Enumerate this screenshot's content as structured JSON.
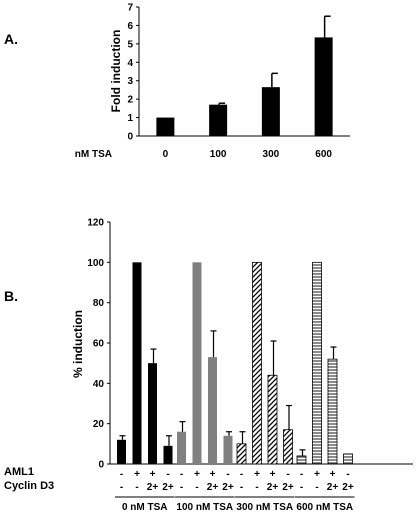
{
  "chart_data": [
    {
      "panel": "A.",
      "type": "bar",
      "ylabel": "Fold induction",
      "xlabel_row": "nM TSA",
      "categories": [
        "0",
        "100",
        "300",
        "600"
      ],
      "values": [
        1.0,
        1.7,
        2.65,
        5.35
      ],
      "errors": [
        0.0,
        0.08,
        0.75,
        1.15
      ],
      "ylim": [
        0,
        7
      ],
      "yticks": [
        "0",
        "1",
        "2",
        "3",
        "4",
        "5",
        "6",
        "7"
      ],
      "color": "#000000",
      "grid": false
    },
    {
      "panel": "B.",
      "type": "bar",
      "ylabel": "% induction",
      "ylim": [
        0,
        120
      ],
      "yticks": [
        "0",
        "20",
        "40",
        "60",
        "80",
        "100",
        "120"
      ],
      "row_labels": [
        "AML1",
        "Cyclin D3"
      ],
      "grid": false,
      "groups": [
        {
          "label": "0 nM TSA",
          "pattern": "solid-black",
          "values": [
            12,
            100,
            50,
            9
          ],
          "errors": [
            2,
            0,
            7,
            5
          ],
          "aml1": [
            "-",
            "+",
            "+",
            "-"
          ],
          "cyclin": [
            "-",
            "-",
            "2+",
            "2+"
          ]
        },
        {
          "label": "100 nM TSA",
          "pattern": "solid-gray",
          "values": [
            16,
            100,
            53,
            14
          ],
          "errors": [
            5,
            0,
            13,
            2
          ],
          "aml1": [
            "-",
            "+",
            "+",
            "-"
          ],
          "cyclin": [
            "-",
            "-",
            "2+",
            "2+"
          ]
        },
        {
          "label": "300 nM TSA",
          "pattern": "diagonal-hatch",
          "values": [
            10,
            100,
            44,
            17
          ],
          "errors": [
            6,
            0,
            17,
            12
          ],
          "aml1": [
            "-",
            "+",
            "+",
            "-"
          ],
          "cyclin": [
            "-",
            "-",
            "2+",
            "2+"
          ]
        },
        {
          "label": "600 nM TSA",
          "pattern": "horizontal-stripe",
          "values": [
            4,
            100,
            52,
            5
          ],
          "errors": [
            3,
            0,
            6,
            0
          ],
          "aml1": [
            "-",
            "+",
            "+",
            "-"
          ],
          "cyclin": [
            "-",
            "-",
            "2+",
            "2+"
          ]
        }
      ]
    }
  ]
}
